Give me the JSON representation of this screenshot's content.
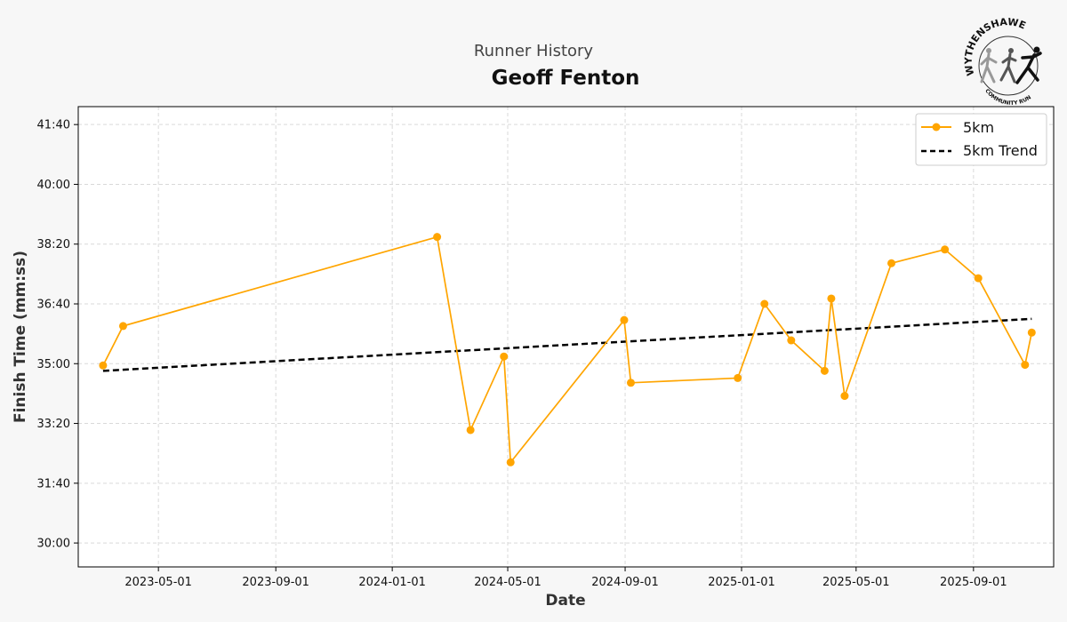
{
  "header": {
    "subtitle": "Runner History",
    "title": "Geoff Fenton"
  },
  "logo": {
    "top_text": "WYTHENSHAWE",
    "bottom_text": "COMMUNITY RUN"
  },
  "colors": {
    "series": "#FFA500",
    "trend": "#000000",
    "grid": "#d9d9d9",
    "background": "#f7f7f7"
  },
  "chart_data": {
    "type": "line",
    "xlabel": "Date",
    "ylabel": "Finish Time (mm:ss)",
    "grid": true,
    "legend_position": "top-right",
    "xlim": [
      "2023-02-06",
      "2025-11-24"
    ],
    "ylim": [
      "29:20",
      "42:10"
    ],
    "x_ticks": [
      "2023-05-01",
      "2023-09-01",
      "2024-01-01",
      "2024-05-01",
      "2024-09-01",
      "2025-01-01",
      "2025-05-01",
      "2025-09-01"
    ],
    "y_ticks": [
      "30:00",
      "31:40",
      "33:20",
      "35:00",
      "36:40",
      "38:20",
      "40:00",
      "41:40"
    ],
    "series": [
      {
        "name": "5km",
        "points": [
          {
            "x": "2023-03-04",
            "y": "34:57"
          },
          {
            "x": "2023-03-25",
            "y": "36:03"
          },
          {
            "x": "2024-02-17",
            "y": "38:32"
          },
          {
            "x": "2024-03-23",
            "y": "33:09"
          },
          {
            "x": "2024-04-27",
            "y": "35:12"
          },
          {
            "x": "2024-05-04",
            "y": "32:15"
          },
          {
            "x": "2024-08-31",
            "y": "36:13"
          },
          {
            "x": "2024-09-07",
            "y": "34:28"
          },
          {
            "x": "2024-12-28",
            "y": "34:36"
          },
          {
            "x": "2025-01-25",
            "y": "36:40"
          },
          {
            "x": "2025-02-22",
            "y": "35:39"
          },
          {
            "x": "2025-03-29",
            "y": "34:48"
          },
          {
            "x": "2025-04-05",
            "y": "36:49"
          },
          {
            "x": "2025-04-19",
            "y": "34:06"
          },
          {
            "x": "2025-06-07",
            "y": "37:48"
          },
          {
            "x": "2025-08-02",
            "y": "38:11"
          },
          {
            "x": "2025-09-06",
            "y": "37:23"
          },
          {
            "x": "2025-10-25",
            "y": "34:58"
          },
          {
            "x": "2025-11-01",
            "y": "35:52"
          }
        ]
      },
      {
        "name": "5km Trend",
        "style": "dashed",
        "points": [
          {
            "x": "2023-03-04",
            "y": "34:48"
          },
          {
            "x": "2025-11-01",
            "y": "36:15"
          }
        ]
      }
    ]
  }
}
